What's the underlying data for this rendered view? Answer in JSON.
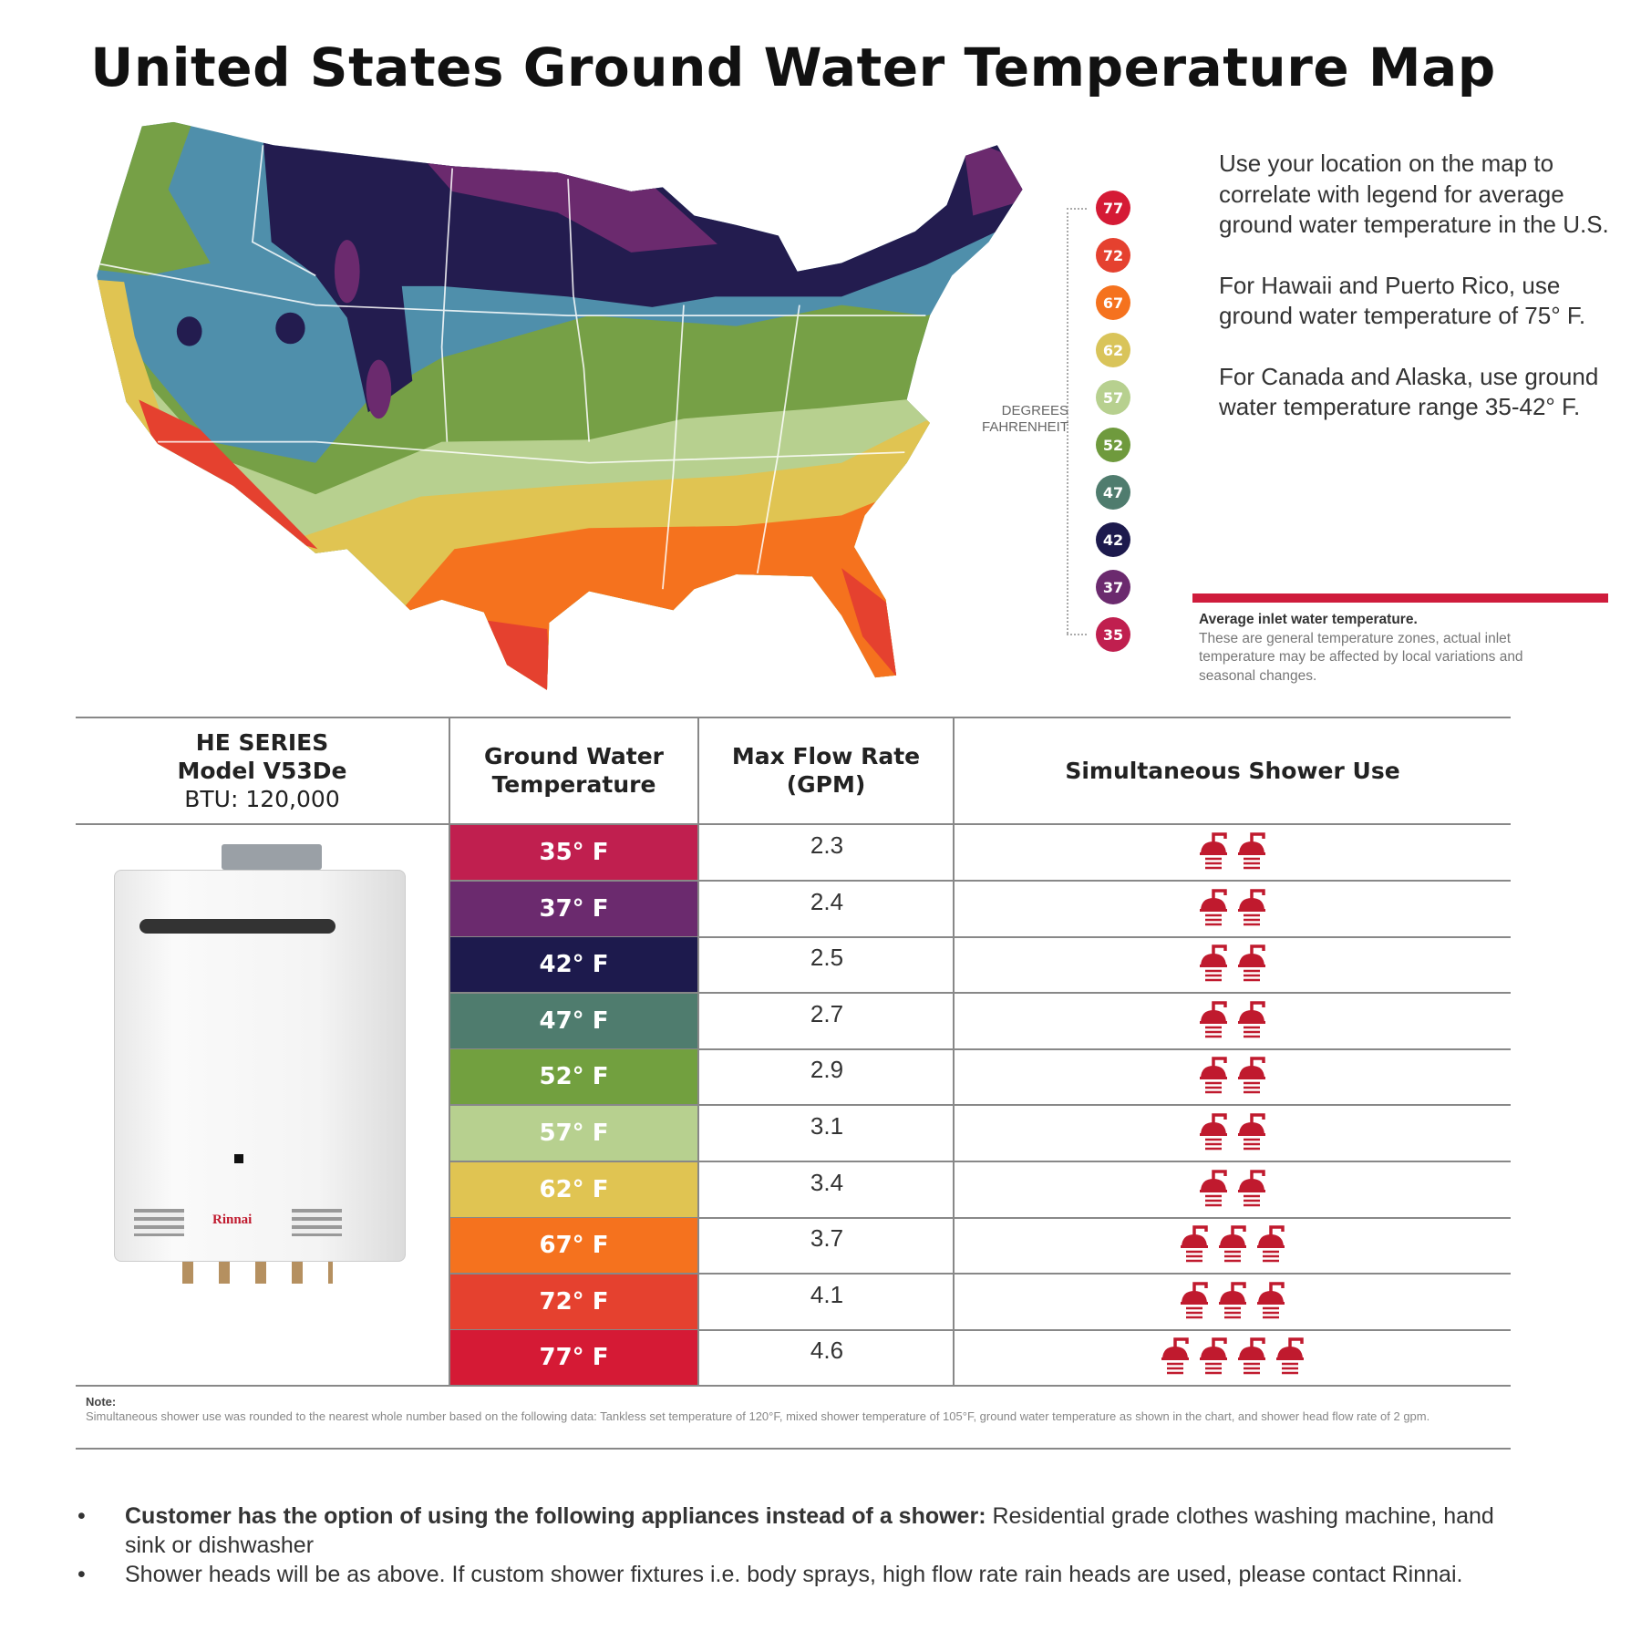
{
  "title": "United States Ground Water Temperature Map",
  "legend": {
    "unit_label_1": "DEGREES",
    "unit_label_2": "FAHRENHEIT",
    "items": [
      {
        "value": "77",
        "color": "#d51a35"
      },
      {
        "value": "72",
        "color": "#e5412f"
      },
      {
        "value": "67",
        "color": "#f5721e"
      },
      {
        "value": "62",
        "color": "#d9c45a"
      },
      {
        "value": "57",
        "color": "#b7d08f"
      },
      {
        "value": "52",
        "color": "#6f9a3d"
      },
      {
        "value": "47",
        "color": "#4f7c6e"
      },
      {
        "value": "42",
        "color": "#1d1a4d"
      },
      {
        "value": "37",
        "color": "#6b2a6e"
      },
      {
        "value": "35",
        "color": "#c01f4f"
      }
    ]
  },
  "side_text": {
    "p1": "Use your location on the map to correlate with legend for average ground water temperature in the U.S.",
    "p2": "For Hawaii and Puerto Rico, use ground water temperature of 75° F.",
    "p3": "For Canada and Alaska, use ground water temperature range 35-42° F."
  },
  "inlet_note": {
    "heading": "Average inlet water temperature.",
    "body": "These are general temperature zones, actual inlet temperature may be affected by local variations and seasonal changes."
  },
  "table": {
    "model_line1": "HE SERIES",
    "model_line2": "Model V53De",
    "model_line3": "BTU: 120,000",
    "col_temp": "Ground Water Temperature",
    "col_flow": "Max Flow Rate (GPM)",
    "col_shower": "Simultaneous Shower Use",
    "brand": "Rinnai",
    "rows": [
      {
        "temp": "35° F",
        "color": "#c01f4f",
        "flow": "2.3",
        "showers": 2
      },
      {
        "temp": "37° F",
        "color": "#6b2a6e",
        "flow": "2.4",
        "showers": 2
      },
      {
        "temp": "42° F",
        "color": "#1d1a4d",
        "flow": "2.5",
        "showers": 2
      },
      {
        "temp": "47° F",
        "color": "#4f7c6e",
        "flow": "2.7",
        "showers": 2
      },
      {
        "temp": "52° F",
        "color": "#72a03f",
        "flow": "2.9",
        "showers": 2
      },
      {
        "temp": "57° F",
        "color": "#b7d08f",
        "flow": "3.1",
        "showers": 2
      },
      {
        "temp": "62° F",
        "color": "#e0c452",
        "flow": "3.4",
        "showers": 2
      },
      {
        "temp": "67° F",
        "color": "#f5721e",
        "flow": "3.7",
        "showers": 3
      },
      {
        "temp": "72° F",
        "color": "#e5412f",
        "flow": "4.1",
        "showers": 3
      },
      {
        "temp": "77° F",
        "color": "#d51a35",
        "flow": "4.6",
        "showers": 4
      }
    ],
    "shower_icon": "shower-head-icon",
    "shower_color": "#c01a2e"
  },
  "note": {
    "label": "Note:",
    "text": "Simultaneous shower use was rounded to the nearest whole number based on the following data: Tankless set temperature of 120°F, mixed shower temperature of 105°F, ground water temperature as shown in the chart, and shower head flow rate of 2 gpm."
  },
  "bullets": [
    {
      "bold": "Customer has the option of using the following appliances instead of a shower:",
      "text": " Residential grade clothes washing machine, hand sink or dishwasher"
    },
    {
      "bold": "",
      "text": "Shower heads will be as above. If custom shower fixtures  i.e. body sprays, high flow rate rain heads are used, please contact Rinnai."
    }
  ]
}
